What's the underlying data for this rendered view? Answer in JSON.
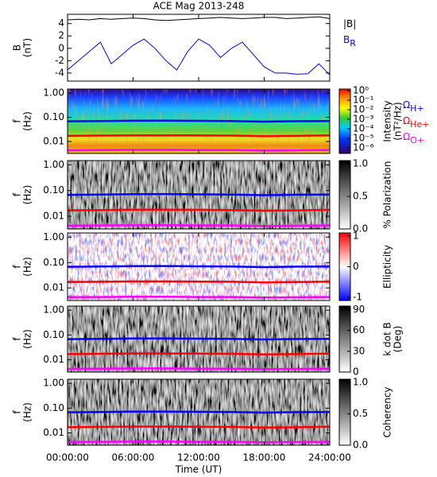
{
  "chart_data": [
    {
      "type": "line",
      "title": "ACE Mag 2013-248",
      "ylabel": [
        "B",
        "(nT)"
      ],
      "xlim": [
        0,
        24
      ],
      "ylim": [
        -5.3,
        5.5
      ],
      "yticks": [
        -4,
        -2,
        0,
        2,
        4
      ],
      "x": [
        0,
        1,
        2,
        3,
        4,
        5,
        6,
        7,
        8,
        9,
        10,
        11,
        12,
        13,
        14,
        15,
        16,
        17,
        18,
        19,
        20,
        21,
        22,
        23,
        24
      ],
      "series": [
        {
          "name": "|B|",
          "color": "#000000",
          "values": [
            4.6,
            4.7,
            4.6,
            4.8,
            4.7,
            4.8,
            4.9,
            4.8,
            4.6,
            4.5,
            4.6,
            4.7,
            4.8,
            4.9,
            5.0,
            4.9,
            4.8,
            4.9,
            5.0,
            5.0,
            4.8,
            4.9,
            5.0,
            5.1,
            4.8
          ]
        },
        {
          "name": "B",
          "name_subscript": "R",
          "color": "#0000ff",
          "values": [
            -3.5,
            -2.0,
            -0.5,
            1.0,
            -2.5,
            -1.0,
            0.5,
            1.5,
            0.0,
            -2.0,
            -3.5,
            -0.5,
            1.5,
            0.5,
            -1.5,
            0.0,
            1.0,
            -1.0,
            -3.0,
            -4.0,
            -4.0,
            -4.2,
            -4.1,
            -2.5,
            -4.3
          ]
        }
      ]
    },
    {
      "type": "spectrogram",
      "ylabel": [
        "f",
        "(Hz)"
      ],
      "log_y": true,
      "xlim": [
        0,
        24
      ],
      "ylim": [
        0.0032,
        1.47
      ],
      "yticks": [
        {
          "value": 1,
          "label": "1.00"
        },
        {
          "value": 0.1,
          "label": "0.10"
        },
        {
          "value": 0.01,
          "label": "0.01"
        }
      ],
      "colorbar": {
        "label": [
          "Intensity",
          "(nT²/Hz)"
        ],
        "log": true,
        "lim": [
          2.5e-07,
          1.5
        ],
        "ticks": [
          {
            "value": 1,
            "label": "10⁰"
          },
          {
            "value": 0.1,
            "label": "10⁻¹"
          },
          {
            "value": 0.01,
            "label": "10⁻²"
          },
          {
            "value": 0.001,
            "label": "10⁻³"
          },
          {
            "value": 0.0001,
            "label": "10⁻⁴"
          },
          {
            "value": 1e-05,
            "label": "10⁻⁵"
          },
          {
            "value": 1e-06,
            "label": "10⁻⁶"
          }
        ]
      },
      "x": [
        0,
        3,
        6,
        9,
        12,
        15,
        18,
        21,
        24
      ],
      "series": [
        {
          "name": "Ω",
          "name_subscript": "H+",
          "color": "#0000ff",
          "values": [
            0.068,
            0.07,
            0.072,
            0.073,
            0.071,
            0.07,
            0.066,
            0.069,
            0.07
          ]
        },
        {
          "name": "Ω",
          "name_subscript": "He+",
          "color": "#ff0000",
          "values": [
            0.017,
            0.0175,
            0.018,
            0.018,
            0.0178,
            0.0175,
            0.0165,
            0.017,
            0.0178
          ]
        },
        {
          "name": "Ω",
          "name_subscript": "O+",
          "color": "#ff00ff",
          "values": [
            0.0043,
            0.0044,
            0.0045,
            0.0045,
            0.0044,
            0.0044,
            0.0042,
            0.0043,
            0.0044
          ]
        }
      ]
    },
    {
      "type": "spectrogram",
      "ylabel": [
        "f",
        "(Hz)"
      ],
      "log_y": true,
      "xlim": [
        0,
        24
      ],
      "ylim": [
        0.0032,
        1.47
      ],
      "yticks": [
        {
          "value": 1,
          "label": "1.00"
        },
        {
          "value": 0.1,
          "label": "0.10"
        },
        {
          "value": 0.01,
          "label": "0.01"
        }
      ],
      "colorbar": {
        "label": [
          "% Polarization"
        ],
        "lim": [
          0,
          1.05
        ],
        "ticks": [
          {
            "value": 0,
            "label": "0.0"
          },
          0.5,
          {
            "value": 1,
            "label": "1.0"
          }
        ]
      },
      "x": [
        0,
        3,
        6,
        9,
        12,
        15,
        18,
        21,
        24
      ],
      "series": [
        {
          "color": "#0000ff",
          "values": [
            0.068,
            0.07,
            0.072,
            0.073,
            0.071,
            0.07,
            0.066,
            0.069,
            0.07
          ]
        },
        {
          "color": "#ff0000",
          "values": [
            0.017,
            0.0175,
            0.018,
            0.018,
            0.0178,
            0.0175,
            0.0165,
            0.017,
            0.0178
          ]
        },
        {
          "color": "#ff00ff",
          "values": [
            0.0043,
            0.0044,
            0.0045,
            0.0045,
            0.0044,
            0.0044,
            0.0042,
            0.0043,
            0.0044
          ]
        }
      ]
    },
    {
      "type": "spectrogram",
      "ylabel": [
        "f",
        "(Hz)"
      ],
      "log_y": true,
      "xlim": [
        0,
        24
      ],
      "ylim": [
        0.0032,
        1.47
      ],
      "yticks": [
        {
          "value": 1,
          "label": "1.00"
        },
        {
          "value": 0.1,
          "label": "0.10"
        },
        {
          "value": 0.01,
          "label": "0.01"
        }
      ],
      "colorbar": {
        "label": [
          "Ellipticity"
        ],
        "lim": [
          -1.1,
          1.1
        ],
        "ticks": [
          -1,
          0,
          1
        ]
      },
      "x": [
        0,
        3,
        6,
        9,
        12,
        15,
        18,
        21,
        24
      ],
      "series": [
        {
          "color": "#0000ff",
          "values": [
            0.068,
            0.07,
            0.072,
            0.073,
            0.071,
            0.07,
            0.066,
            0.069,
            0.07
          ]
        },
        {
          "color": "#ff0000",
          "values": [
            0.017,
            0.0175,
            0.018,
            0.018,
            0.0178,
            0.0175,
            0.0165,
            0.017,
            0.0178
          ]
        },
        {
          "color": "#ff00ff",
          "values": [
            0.0043,
            0.0044,
            0.0045,
            0.0045,
            0.0044,
            0.0044,
            0.0042,
            0.0043,
            0.0044
          ]
        }
      ]
    },
    {
      "type": "spectrogram",
      "ylabel": [
        "f",
        "(Hz)"
      ],
      "log_y": true,
      "xlim": [
        0,
        24
      ],
      "ylim": [
        0.0032,
        1.47
      ],
      "yticks": [
        {
          "value": 1,
          "label": "1.00"
        },
        {
          "value": 0.1,
          "label": "0.10"
        },
        {
          "value": 0.01,
          "label": "0.01"
        }
      ],
      "colorbar": {
        "label": [
          "k dot B",
          "(Deg)"
        ],
        "lim": [
          0,
          95
        ],
        "ticks": [
          0,
          30,
          60,
          90
        ]
      },
      "x": [
        0,
        3,
        6,
        9,
        12,
        15,
        18,
        21,
        24
      ],
      "series": [
        {
          "color": "#0000ff",
          "values": [
            0.068,
            0.07,
            0.072,
            0.073,
            0.071,
            0.07,
            0.066,
            0.069,
            0.07
          ]
        },
        {
          "color": "#ff0000",
          "values": [
            0.017,
            0.0175,
            0.018,
            0.018,
            0.0178,
            0.0175,
            0.0165,
            0.017,
            0.0178
          ]
        },
        {
          "color": "#ff00ff",
          "values": [
            0.0043,
            0.0044,
            0.0045,
            0.0045,
            0.0044,
            0.0044,
            0.0042,
            0.0043,
            0.0044
          ]
        }
      ]
    },
    {
      "type": "spectrogram",
      "ylabel": [
        "f",
        "(Hz)"
      ],
      "log_y": true,
      "xlim": [
        0,
        24
      ],
      "ylim": [
        0.0032,
        1.47
      ],
      "yticks": [
        {
          "value": 1,
          "label": "1.00"
        },
        {
          "value": 0.1,
          "label": "0.10"
        },
        {
          "value": 0.01,
          "label": "0.01"
        }
      ],
      "colorbar": {
        "label": [
          "Coherency"
        ],
        "lim": [
          0,
          1.05
        ],
        "ticks": [
          {
            "value": 0,
            "label": "0.0"
          },
          0.5,
          {
            "value": 1,
            "label": "1.0"
          }
        ]
      },
      "x": [
        0,
        3,
        6,
        9,
        12,
        15,
        18,
        21,
        24
      ],
      "series": [
        {
          "color": "#0000ff",
          "values": [
            0.068,
            0.07,
            0.072,
            0.073,
            0.071,
            0.07,
            0.066,
            0.069,
            0.07
          ]
        },
        {
          "color": "#ff0000",
          "values": [
            0.017,
            0.0175,
            0.018,
            0.018,
            0.0178,
            0.0175,
            0.0165,
            0.017,
            0.0178
          ]
        },
        {
          "color": "#ff00ff",
          "values": [
            0.0043,
            0.0044,
            0.0045,
            0.0045,
            0.0044,
            0.0044,
            0.0042,
            0.0043,
            0.0044
          ]
        }
      ],
      "xlabel": "Time (UT)",
      "xticks": [
        {
          "value": 0,
          "label": "00:00:00"
        },
        {
          "value": 6,
          "label": "06:00:00"
        },
        {
          "value": 12,
          "label": "12:00:00"
        },
        {
          "value": 18,
          "label": "18:00:00"
        },
        {
          "value": 24,
          "label": "24:00:00"
        }
      ]
    }
  ]
}
